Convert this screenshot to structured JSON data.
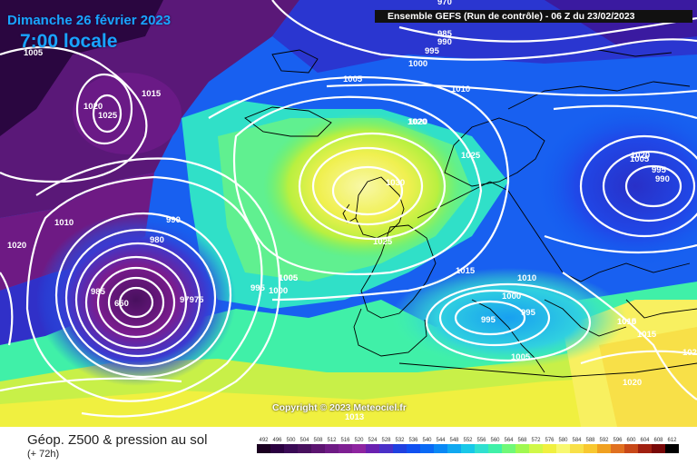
{
  "title": {
    "date": "Dimanche 26 février 2023",
    "time": "7:00 locale"
  },
  "header": "Ensemble GEFS  (Run de contrôle)  -  06 Z du 23/02/2023",
  "copyright": "Copyright © 2023 Meteociel.fr",
  "footer": {
    "parameter": "Géop. Z500 & pression au sol",
    "lead_time": "(+ 72h)"
  },
  "legend": {
    "values": [
      "492",
      "496",
      "500",
      "504",
      "508",
      "512",
      "516",
      "520",
      "524",
      "528",
      "532",
      "536",
      "540",
      "544",
      "548",
      "552",
      "556",
      "560",
      "564",
      "568",
      "572",
      "576",
      "580",
      "584",
      "588",
      "592",
      "596",
      "600",
      "604",
      "608",
      "612"
    ],
    "colors": [
      "#1a0020",
      "#2a0040",
      "#3a0a55",
      "#48105e",
      "#5c1470",
      "#6e1a84",
      "#7e1f92",
      "#8e24a0",
      "#6a20b0",
      "#4a30c8",
      "#2040e0",
      "#1050f0",
      "#0a6af5",
      "#0a88f5",
      "#10a8f0",
      "#18c8e8",
      "#30e0d0",
      "#40f0a8",
      "#70f878",
      "#a0f850",
      "#d0f848",
      "#f0f040",
      "#f8f870",
      "#f8e048",
      "#f8c830",
      "#f0a020",
      "#e07020",
      "#c84818",
      "#a02010",
      "#780808",
      "#000000"
    ]
  },
  "isobars": [
    {
      "text": "970"
    },
    {
      "text": "985"
    },
    {
      "text": "990"
    },
    {
      "text": "995"
    },
    {
      "text": "1000"
    },
    {
      "text": "1005"
    },
    {
      "text": "1010"
    },
    {
      "text": "1005"
    },
    {
      "text": "1015"
    },
    {
      "text": "1020"
    },
    {
      "text": "1025"
    },
    {
      "text": "1020"
    },
    {
      "text": "1025"
    },
    {
      "text": "1030"
    },
    {
      "text": "1025"
    },
    {
      "text": "1010"
    },
    {
      "text": "1020"
    },
    {
      "text": "990"
    },
    {
      "text": "980"
    },
    {
      "text": "985"
    },
    {
      "text": "650"
    },
    {
      "text": "97975"
    },
    {
      "text": "995"
    },
    {
      "text": "1000"
    },
    {
      "text": "1005"
    },
    {
      "text": "1020"
    },
    {
      "text": "1015"
    },
    {
      "text": "1020"
    },
    {
      "text": "1015"
    },
    {
      "text": "1010"
    },
    {
      "text": "1000"
    },
    {
      "text": "995"
    },
    {
      "text": "995"
    },
    {
      "text": "1005"
    },
    {
      "text": "1013"
    },
    {
      "text": "1010"
    },
    {
      "text": "1015"
    },
    {
      "text": "1020"
    },
    {
      "text": "102"
    },
    {
      "text": "1005"
    },
    {
      "text": "995"
    },
    {
      "text": "990"
    },
    {
      "text": "1005"
    }
  ]
}
